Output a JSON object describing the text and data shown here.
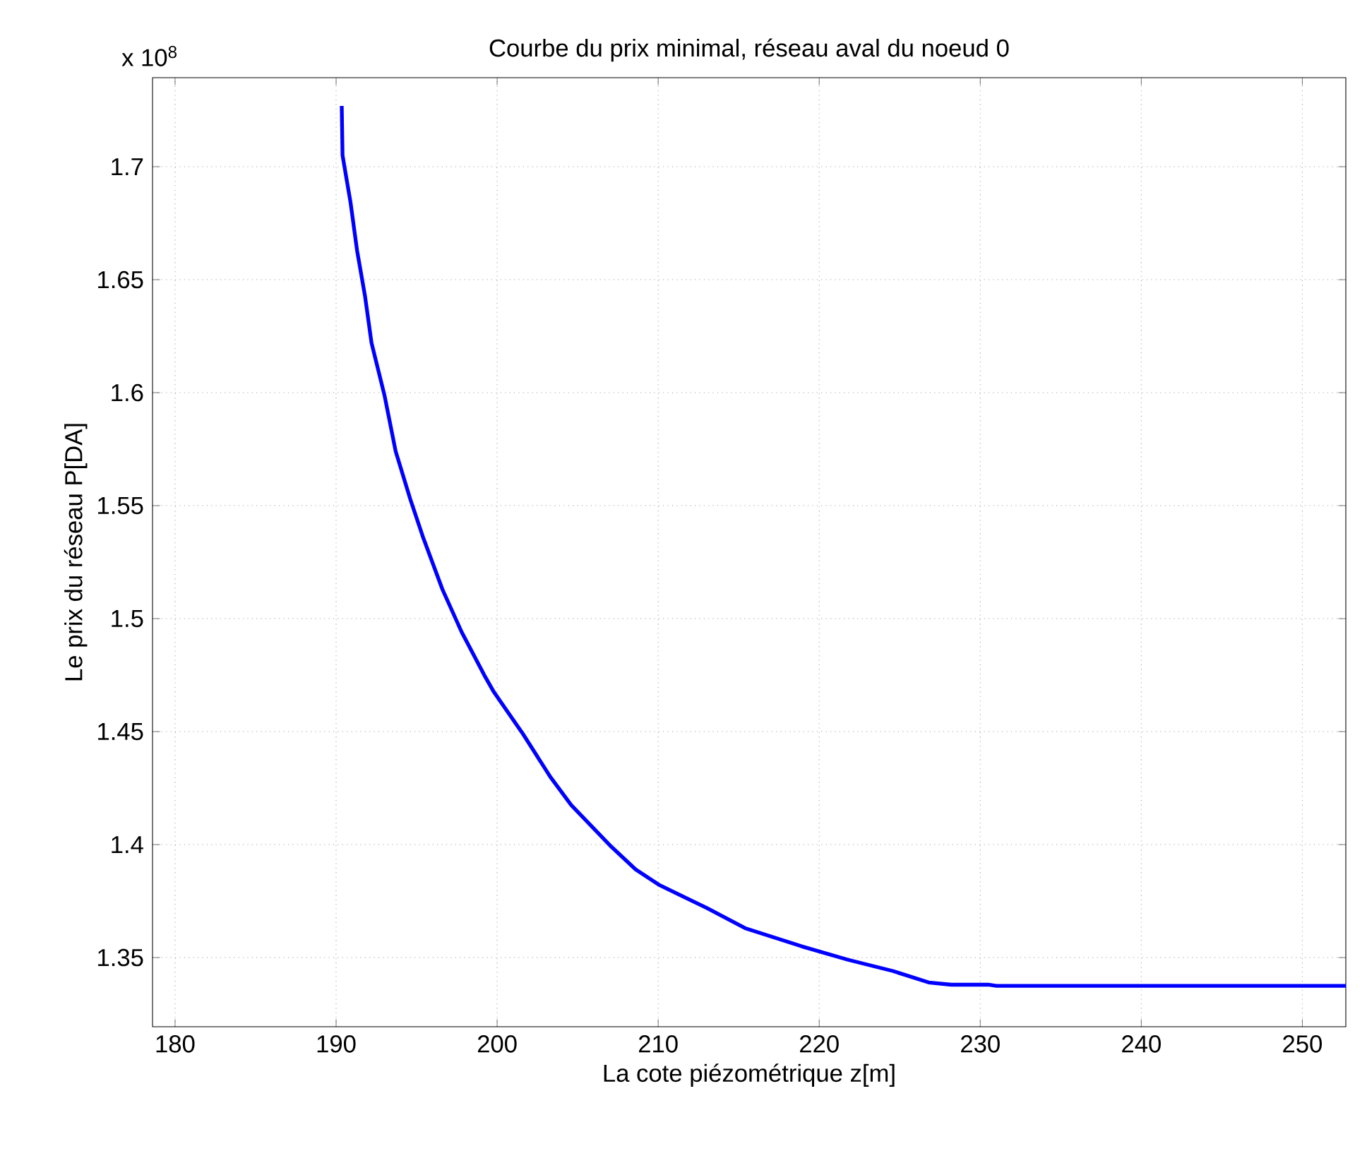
{
  "chart_data": {
    "type": "line",
    "title": "Courbe du prix minimal, réseau aval du noeud 0",
    "xlabel": "La cote piézométrique z[m]",
    "ylabel": "Le prix du réseau P[DA]",
    "annotations": [
      "x 10$^{8}$"
    ],
    "series": [
      {
        "color": "#0000ff",
        "x": [
          190.35,
          190.4,
          190.9,
          191.3,
          191.8,
          192.2,
          193.0,
          193.7,
          194.6,
          195.4,
          196.6,
          197.8,
          199.2,
          199.8,
          201.6,
          203.3,
          204.6,
          207.1,
          208.6,
          210.1,
          213.0,
          215.4,
          218.9,
          221.8,
          224.6,
          226.8,
          228.2,
          230.5,
          231.0,
          252.7
        ],
        "values": [
          1.7269,
          1.705,
          1.684,
          1.663,
          1.6425,
          1.622,
          1.599,
          1.574,
          1.553,
          1.536,
          1.513,
          1.494,
          1.475,
          1.4675,
          1.449,
          1.43,
          1.4175,
          1.399,
          1.389,
          1.382,
          1.372,
          1.363,
          1.355,
          1.349,
          1.344,
          1.339,
          1.338,
          1.338,
          1.3375,
          1.3375
        ]
      }
    ],
    "xlim": [
      178.6,
      252.7
    ],
    "ylim": [
      1.3194,
      1.7394
    ],
    "xticks": [
      180,
      190,
      200,
      210,
      220,
      230,
      240,
      250
    ],
    "yticks": [
      1.35,
      1.4,
      1.45,
      1.5,
      1.55,
      1.6,
      1.65,
      1.7
    ],
    "grid": true,
    "line_style": "solid",
    "marker": "none"
  }
}
